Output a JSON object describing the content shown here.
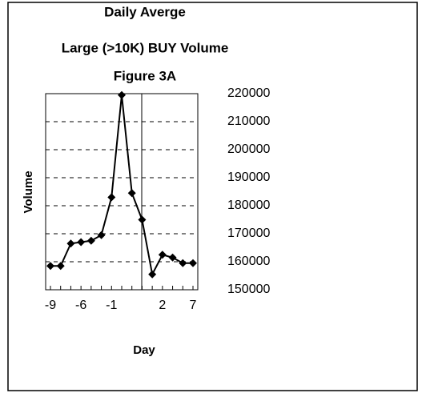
{
  "chart_data": {
    "type": "line",
    "title": [
      "Daily Averge",
      "Large (>10K) BUY Volume",
      "Figure 3A"
    ],
    "x_label": "Day",
    "y_label": "Volume",
    "categories": [
      "-9",
      null,
      null,
      "-6",
      null,
      null,
      "-1",
      null,
      null,
      null,
      null,
      "2",
      null,
      null,
      "7"
    ],
    "series": [
      {
        "name": "Volume",
        "color": "#000000",
        "values": [
          158500,
          158500,
          166500,
          167000,
          167500,
          169500,
          183000,
          219500,
          184500,
          175000,
          155500,
          162500,
          161500,
          159500,
          159500
        ]
      }
    ],
    "ylim": [
      150000,
      220000
    ],
    "yticks": [
      150000,
      160000,
      170000,
      180000,
      190000,
      200000,
      210000,
      220000
    ],
    "grid": true
  }
}
